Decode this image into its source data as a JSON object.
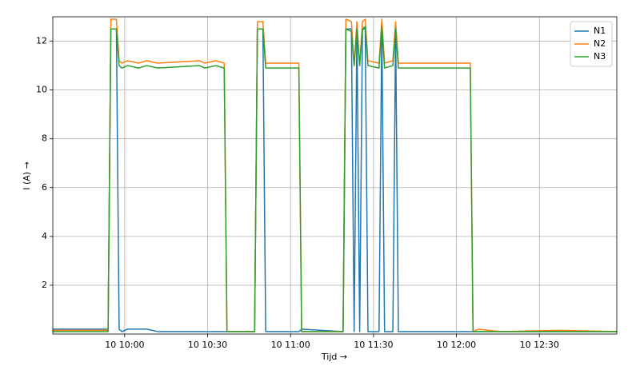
{
  "chart_data": {
    "type": "line",
    "xlabel": "Tijd →",
    "ylabel": "I (A) →",
    "x": [
      "10 09:34",
      "10 09:54",
      "10 09:55",
      "10 09:57",
      "10 09:58",
      "10 09:59",
      "10 10:01",
      "10 10:05",
      "10 10:08",
      "10 10:12",
      "10 10:27",
      "10 10:29",
      "10 10:33",
      "10 10:36",
      "10 10:37",
      "10 10:47",
      "10 10:48",
      "10 10:50",
      "10 10:51",
      "10 11:03",
      "10 11:04",
      "10 11:19",
      "10 11:20",
      "10 11:22",
      "10 11:23",
      "10 11:24",
      "10 11:25",
      "10 11:26",
      "10 11:27",
      "10 11:28",
      "10 11:32",
      "10 11:33",
      "10 11:34",
      "10 11:37",
      "10 11:38",
      "10 11:39",
      "10 12:05",
      "10 12:06",
      "10 12:08",
      "10 12:16",
      "10 12:37",
      "10 12:58"
    ],
    "series": [
      {
        "name": "N1",
        "color": "#1f77b4",
        "values": [
          0.2,
          0.2,
          12.5,
          12.5,
          0.2,
          0.1,
          0.2,
          0.2,
          0.2,
          0.1,
          0.1,
          0.1,
          0.1,
          0.1,
          0.1,
          0.1,
          12.5,
          12.5,
          0.1,
          0.1,
          0.2,
          0.1,
          12.5,
          12.5,
          0.1,
          12.5,
          0.1,
          12.5,
          12.5,
          0.1,
          0.1,
          12.5,
          0.1,
          0.1,
          12.4,
          0.1,
          0.1,
          0.1,
          0.1,
          0.1,
          0.1,
          0.1
        ]
      },
      {
        "name": "N2",
        "color": "#ff7f0e",
        "values": [
          0.15,
          0.15,
          12.9,
          12.9,
          11.2,
          11.1,
          11.2,
          11.1,
          11.2,
          11.1,
          11.2,
          11.1,
          11.2,
          11.1,
          0.1,
          0.1,
          12.8,
          12.8,
          11.1,
          11.1,
          0.1,
          0.1,
          12.9,
          12.8,
          11.0,
          12.8,
          11.0,
          12.8,
          12.9,
          11.2,
          11.1,
          12.9,
          11.1,
          11.2,
          12.8,
          11.1,
          11.1,
          0.1,
          0.2,
          0.1,
          0.15,
          0.1
        ]
      },
      {
        "name": "N3",
        "color": "#2ca02c",
        "values": [
          0.1,
          0.1,
          12.5,
          12.5,
          11.0,
          10.9,
          11.0,
          10.9,
          11.0,
          10.9,
          11.0,
          10.9,
          11.0,
          10.9,
          0.1,
          0.1,
          12.5,
          12.5,
          10.9,
          10.9,
          0.1,
          0.1,
          12.5,
          12.4,
          11.0,
          12.5,
          11.0,
          12.5,
          12.6,
          11.0,
          10.9,
          12.6,
          10.9,
          11.0,
          12.5,
          10.9,
          10.9,
          0.1,
          0.1,
          0.1,
          0.1,
          0.1
        ]
      }
    ],
    "xlim": [
      "10 09:34",
      "10 12:58"
    ],
    "xticks": [
      "10 10:00",
      "10 10:30",
      "10 11:00",
      "10 11:30",
      "10 12:00",
      "10 12:30"
    ],
    "ylim": [
      0,
      13
    ],
    "yticks": [
      2,
      4,
      6,
      8,
      10,
      12
    ],
    "grid": true,
    "legend": "upper right"
  }
}
